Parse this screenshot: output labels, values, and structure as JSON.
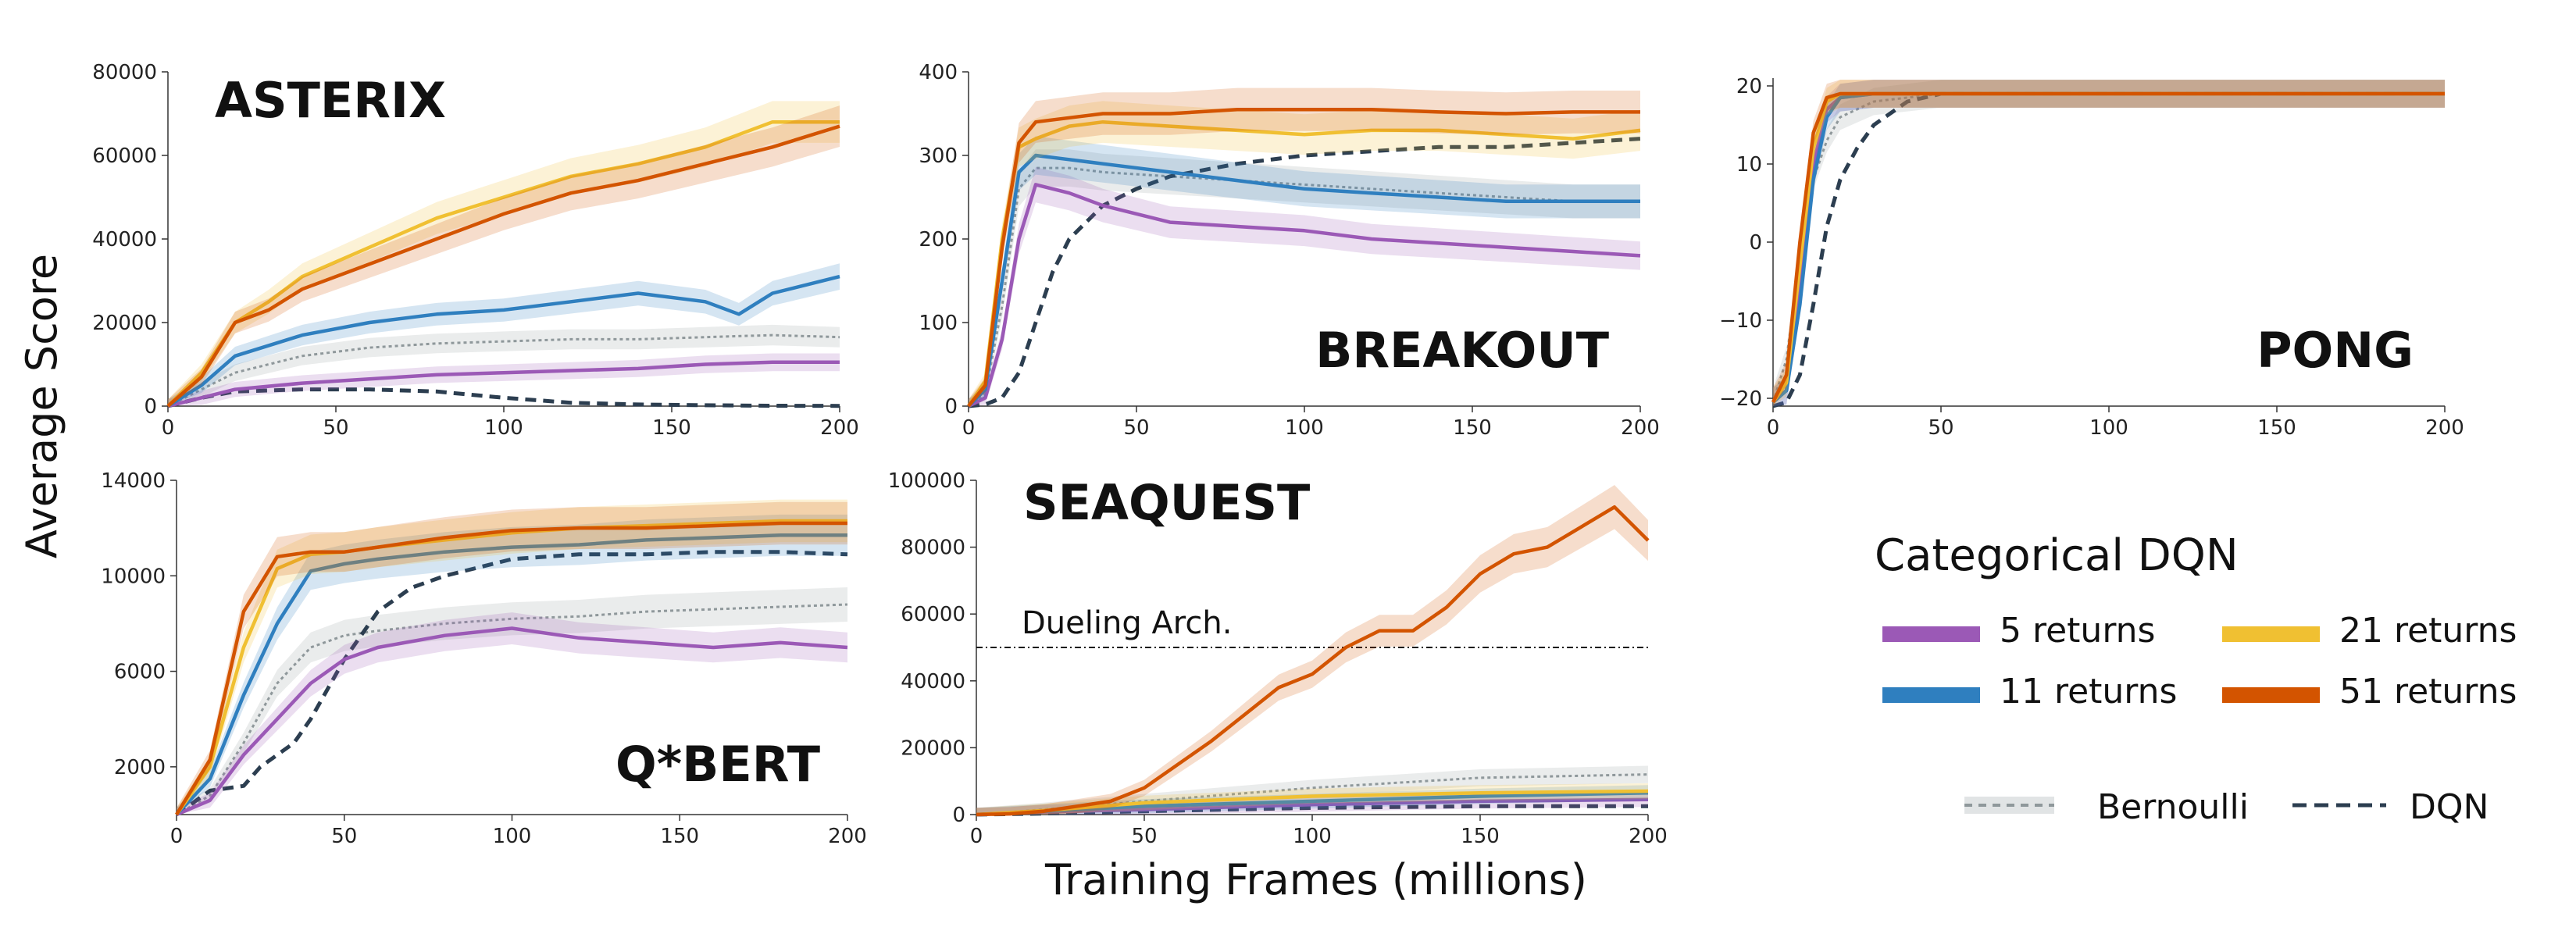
{
  "figure": {
    "ylabel": "Average Score",
    "xlabel": "Training Frames (millions)",
    "legend": {
      "title": "Categorical DQN",
      "items": [
        {
          "key": "r5",
          "label": "5 returns"
        },
        {
          "key": "r21",
          "label": "21 returns"
        },
        {
          "key": "r11",
          "label": "11 returns"
        },
        {
          "key": "r51",
          "label": "51 returns"
        },
        {
          "key": "bern",
          "label": "Bernoulli"
        },
        {
          "key": "dqn",
          "label": "DQN"
        }
      ]
    },
    "colors": {
      "r5": "#9b59b6",
      "r11": "#2f7fbf",
      "r21": "#f0c032",
      "r51": "#d35400",
      "bern": "#aab2b4",
      "dqn": "#2c3e50"
    }
  },
  "chart_data": [
    {
      "type": "line",
      "game": "Asterix",
      "title": "ASTERIX",
      "xlim": [
        0,
        200
      ],
      "ylim": [
        0,
        80000
      ],
      "xticks": [
        "0",
        "50",
        "100",
        "150",
        "200"
      ],
      "yticks": [
        "0",
        "20000",
        "40000",
        "60000",
        "80000"
      ],
      "series": [
        {
          "key": "r5",
          "name": "5 returns",
          "x": [
            0,
            10,
            20,
            40,
            60,
            80,
            100,
            120,
            140,
            160,
            180,
            200
          ],
          "y": [
            0,
            2000,
            4000,
            5500,
            6500,
            7500,
            8000,
            8500,
            9000,
            10000,
            10500,
            10500
          ]
        },
        {
          "key": "r11",
          "name": "11 returns",
          "x": [
            0,
            10,
            20,
            40,
            60,
            80,
            100,
            120,
            140,
            160,
            170,
            180,
            200
          ],
          "y": [
            0,
            5000,
            12000,
            17000,
            20000,
            22000,
            23000,
            25000,
            27000,
            25000,
            22000,
            27000,
            31000
          ]
        },
        {
          "key": "r21",
          "name": "21 returns",
          "x": [
            0,
            10,
            20,
            30,
            40,
            60,
            80,
            100,
            120,
            140,
            160,
            180,
            200
          ],
          "y": [
            0,
            8000,
            20000,
            25000,
            31000,
            38000,
            45000,
            50000,
            55000,
            58000,
            62000,
            68000,
            68000
          ]
        },
        {
          "key": "r51",
          "name": "51 returns",
          "x": [
            0,
            10,
            20,
            30,
            40,
            60,
            80,
            100,
            120,
            140,
            160,
            180,
            200
          ],
          "y": [
            0,
            7000,
            20000,
            23000,
            28000,
            34000,
            40000,
            46000,
            51000,
            54000,
            58000,
            62000,
            67000
          ]
        },
        {
          "key": "bern",
          "name": "Bernoulli",
          "x": [
            0,
            10,
            20,
            40,
            60,
            80,
            100,
            120,
            140,
            160,
            180,
            200
          ],
          "y": [
            0,
            4000,
            8000,
            12000,
            14000,
            15000,
            15500,
            16000,
            16000,
            16500,
            17000,
            16500
          ]
        },
        {
          "key": "dqn",
          "name": "DQN",
          "x": [
            0,
            10,
            20,
            40,
            60,
            80,
            100,
            120,
            140,
            160,
            180,
            200
          ],
          "y": [
            0,
            2000,
            3500,
            4000,
            4000,
            3500,
            2000,
            800,
            400,
            200,
            100,
            50
          ]
        }
      ]
    },
    {
      "type": "line",
      "game": "Breakout",
      "title": "BREAKOUT",
      "xlim": [
        0,
        200
      ],
      "ylim": [
        0,
        400
      ],
      "xticks": [
        "0",
        "50",
        "100",
        "150",
        "200"
      ],
      "yticks": [
        "0",
        "100",
        "200",
        "300",
        "400"
      ],
      "series": [
        {
          "key": "r5",
          "name": "5 returns",
          "x": [
            0,
            5,
            10,
            15,
            20,
            30,
            40,
            60,
            80,
            100,
            120,
            140,
            160,
            180,
            200
          ],
          "y": [
            0,
            10,
            80,
            200,
            265,
            255,
            240,
            220,
            215,
            210,
            200,
            195,
            190,
            185,
            180
          ]
        },
        {
          "key": "r11",
          "name": "11 returns",
          "x": [
            0,
            5,
            10,
            15,
            20,
            30,
            40,
            60,
            80,
            100,
            120,
            140,
            160,
            180,
            200
          ],
          "y": [
            0,
            20,
            150,
            280,
            300,
            295,
            290,
            280,
            270,
            260,
            255,
            250,
            245,
            245,
            245
          ]
        },
        {
          "key": "r21",
          "name": "21 returns",
          "x": [
            0,
            5,
            10,
            15,
            20,
            30,
            40,
            60,
            80,
            100,
            120,
            140,
            160,
            180,
            200
          ],
          "y": [
            0,
            30,
            200,
            310,
            320,
            335,
            340,
            335,
            330,
            325,
            330,
            330,
            325,
            320,
            330
          ]
        },
        {
          "key": "r51",
          "name": "51 returns",
          "x": [
            0,
            5,
            10,
            15,
            20,
            30,
            40,
            60,
            80,
            100,
            120,
            140,
            160,
            180,
            200
          ],
          "y": [
            0,
            25,
            190,
            315,
            340,
            345,
            350,
            350,
            355,
            355,
            355,
            352,
            350,
            352,
            352
          ]
        },
        {
          "key": "bern",
          "name": "Bernoulli",
          "x": [
            0,
            5,
            10,
            15,
            20,
            30,
            40,
            60,
            80,
            100,
            120,
            140,
            160,
            180,
            200
          ],
          "y": [
            0,
            15,
            120,
            260,
            285,
            285,
            280,
            275,
            270,
            265,
            260,
            255,
            250,
            245,
            245
          ]
        },
        {
          "key": "dqn",
          "name": "DQN",
          "x": [
            0,
            5,
            10,
            15,
            20,
            25,
            30,
            40,
            50,
            60,
            80,
            100,
            120,
            140,
            160,
            180,
            200
          ],
          "y": [
            0,
            2,
            10,
            40,
            100,
            160,
            200,
            240,
            260,
            275,
            290,
            300,
            305,
            310,
            310,
            315,
            320
          ]
        }
      ]
    },
    {
      "type": "line",
      "game": "Pong",
      "title": "PONG",
      "xlim": [
        0,
        200
      ],
      "ylim": [
        -21,
        21
      ],
      "xticks": [
        "0",
        "50",
        "100",
        "150",
        "200"
      ],
      "yticks": [
        "−20",
        "−10",
        "0",
        "10",
        "20"
      ],
      "series": [
        {
          "key": "r5",
          "name": "5 returns",
          "x": [
            0,
            4,
            8,
            12,
            16,
            20,
            30,
            50,
            100,
            150,
            200
          ],
          "y": [
            -20.5,
            -19,
            -5,
            10,
            17,
            18.5,
            19,
            19,
            19,
            19,
            19
          ]
        },
        {
          "key": "r11",
          "name": "11 returns",
          "x": [
            0,
            4,
            8,
            12,
            16,
            20,
            30,
            50,
            100,
            150,
            200
          ],
          "y": [
            -20.5,
            -19,
            -8,
            8,
            16,
            18.5,
            19,
            19,
            19,
            19,
            19
          ]
        },
        {
          "key": "r21",
          "name": "21 returns",
          "x": [
            0,
            4,
            8,
            12,
            16,
            20,
            30,
            50,
            100,
            150,
            200
          ],
          "y": [
            -20.5,
            -18,
            -3,
            12,
            18,
            19,
            19,
            19,
            19,
            19,
            19
          ]
        },
        {
          "key": "r51",
          "name": "51 returns",
          "x": [
            0,
            4,
            8,
            12,
            16,
            20,
            30,
            50,
            100,
            150,
            200
          ],
          "y": [
            -20.5,
            -17,
            0,
            14,
            18.5,
            19,
            19,
            19,
            19,
            19,
            19
          ]
        },
        {
          "key": "bern",
          "name": "Bernoulli",
          "x": [
            0,
            4,
            8,
            12,
            16,
            20,
            30,
            50,
            100,
            150,
            200
          ],
          "y": [
            -20.5,
            -15,
            -2,
            8,
            13,
            16,
            18,
            19,
            19,
            19,
            19
          ]
        },
        {
          "key": "dqn",
          "name": "DQN",
          "x": [
            0,
            4,
            8,
            12,
            16,
            20,
            25,
            30,
            40,
            50,
            100,
            150,
            200
          ],
          "y": [
            -21,
            -20.5,
            -17,
            -8,
            2,
            8,
            12,
            15,
            18,
            19,
            19,
            19,
            19
          ]
        }
      ]
    },
    {
      "type": "line",
      "game": "Q*bert",
      "title": "Q*BERT",
      "xlim": [
        0,
        200
      ],
      "ylim": [
        0,
        14000
      ],
      "xticks": [
        "0",
        "50",
        "100",
        "150",
        "200"
      ],
      "yticks": [
        "2000",
        "6000",
        "10000",
        "14000"
      ],
      "series": [
        {
          "key": "r5",
          "name": "5 returns",
          "x": [
            0,
            10,
            20,
            30,
            40,
            50,
            60,
            80,
            100,
            120,
            140,
            160,
            180,
            200
          ],
          "y": [
            0,
            600,
            2500,
            4000,
            5500,
            6500,
            7000,
            7500,
            7800,
            7400,
            7200,
            7000,
            7200,
            7000
          ]
        },
        {
          "key": "r11",
          "name": "11 returns",
          "x": [
            0,
            10,
            20,
            30,
            40,
            50,
            60,
            80,
            100,
            120,
            140,
            160,
            180,
            200
          ],
          "y": [
            0,
            1500,
            5000,
            8000,
            10200,
            10500,
            10700,
            11000,
            11200,
            11300,
            11500,
            11600,
            11700,
            11700
          ]
        },
        {
          "key": "r21",
          "name": "21 returns",
          "x": [
            0,
            10,
            20,
            30,
            40,
            50,
            60,
            80,
            100,
            120,
            140,
            160,
            180,
            200
          ],
          "y": [
            0,
            2000,
            7000,
            10300,
            10900,
            11000,
            11200,
            11500,
            11800,
            12000,
            12100,
            12200,
            12300,
            12300
          ]
        },
        {
          "key": "r51",
          "name": "51 returns",
          "x": [
            0,
            10,
            20,
            30,
            40,
            50,
            60,
            80,
            100,
            120,
            140,
            160,
            180,
            200
          ],
          "y": [
            0,
            2300,
            8500,
            10800,
            11000,
            11000,
            11200,
            11600,
            11900,
            12000,
            12000,
            12100,
            12200,
            12200
          ]
        },
        {
          "key": "bern",
          "name": "Bernoulli",
          "x": [
            0,
            10,
            20,
            30,
            40,
            50,
            60,
            80,
            100,
            120,
            140,
            160,
            180,
            200
          ],
          "y": [
            0,
            800,
            3000,
            5500,
            7000,
            7500,
            7700,
            8000,
            8200,
            8300,
            8500,
            8600,
            8700,
            8800
          ]
        },
        {
          "key": "dqn",
          "name": "DQN",
          "x": [
            0,
            10,
            20,
            25,
            30,
            35,
            40,
            50,
            60,
            70,
            80,
            100,
            120,
            140,
            160,
            180,
            200
          ],
          "y": [
            0,
            1000,
            1200,
            2000,
            2500,
            3000,
            4000,
            6500,
            8500,
            9500,
            10000,
            10700,
            10900,
            10900,
            11000,
            11000,
            10900
          ]
        }
      ]
    },
    {
      "type": "line",
      "game": "Seaquest",
      "title": "SEAQUEST",
      "xlim": [
        0,
        200
      ],
      "ylim": [
        0,
        100000
      ],
      "xticks": [
        "0",
        "50",
        "100",
        "150",
        "200"
      ],
      "yticks": [
        "0",
        "20000",
        "40000",
        "60000",
        "80000",
        "100000"
      ],
      "annotation": {
        "label": "Dueling Arch.",
        "y": 50000
      },
      "series": [
        {
          "key": "r5",
          "name": "5 returns",
          "x": [
            0,
            20,
            50,
            100,
            150,
            200
          ],
          "y": [
            0,
            800,
            1500,
            3000,
            4000,
            4500
          ]
        },
        {
          "key": "r11",
          "name": "11 returns",
          "x": [
            0,
            20,
            50,
            100,
            150,
            200
          ],
          "y": [
            0,
            1000,
            2500,
            4000,
            5500,
            6500
          ]
        },
        {
          "key": "r21",
          "name": "21 returns",
          "x": [
            0,
            20,
            50,
            100,
            150,
            200
          ],
          "y": [
            0,
            1200,
            3500,
            5500,
            6500,
            7000
          ]
        },
        {
          "key": "r51",
          "name": "51 returns",
          "x": [
            0,
            10,
            20,
            30,
            40,
            50,
            60,
            70,
            80,
            90,
            100,
            110,
            120,
            130,
            140,
            150,
            160,
            170,
            180,
            190,
            200
          ],
          "y": [
            0,
            200,
            1000,
            2500,
            4000,
            8000,
            15000,
            22000,
            30000,
            38000,
            42000,
            50000,
            55000,
            55000,
            62000,
            72000,
            78000,
            80000,
            86000,
            92000,
            82000
          ]
        },
        {
          "key": "bern",
          "name": "Bernoulli",
          "x": [
            0,
            20,
            50,
            100,
            150,
            200
          ],
          "y": [
            0,
            1500,
            4000,
            8000,
            11000,
            12000
          ]
        },
        {
          "key": "dqn",
          "name": "DQN",
          "x": [
            0,
            20,
            50,
            100,
            150,
            200
          ],
          "y": [
            0,
            300,
            1000,
            2000,
            2500,
            2500
          ]
        }
      ]
    }
  ]
}
